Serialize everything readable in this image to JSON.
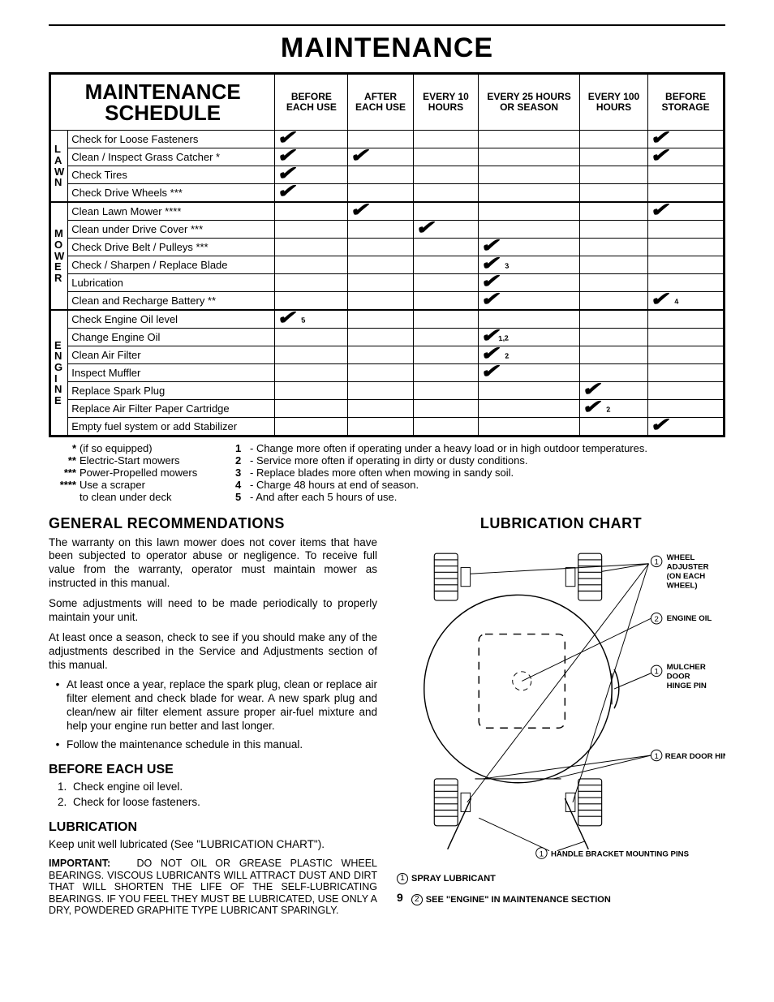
{
  "page_title": "MAINTENANCE",
  "schedule_title": "MAINTENANCE SCHEDULE",
  "columns": [
    "BEFORE EACH USE",
    "AFTER EACH USE",
    "EVERY 10 HOURS",
    "EVERY 25 HOURS OR SEASON",
    "EVERY 100 HOURS",
    "BEFORE STORAGE"
  ],
  "sections": [
    {
      "label": "LAWN",
      "split": [
        1,
        1,
        1,
        1
      ],
      "rows": [
        {
          "task": "Check for Loose Fasteners",
          "marks": [
            "✔",
            "",
            "",
            "",
            "",
            "✔"
          ],
          "subs": [
            "",
            "",
            "",
            "",
            "",
            ""
          ]
        },
        {
          "task": "Clean / Inspect Grass Catcher *",
          "marks": [
            "✔",
            "✔",
            "",
            "",
            "",
            "✔"
          ],
          "subs": [
            "",
            "",
            "",
            "",
            "",
            ""
          ]
        },
        {
          "task": "Check Tires",
          "marks": [
            "✔",
            "",
            "",
            "",
            "",
            ""
          ],
          "subs": [
            "",
            "",
            "",
            "",
            "",
            ""
          ]
        },
        {
          "task": "Check Drive Wheels ***",
          "marks": [
            "✔",
            "",
            "",
            "",
            "",
            ""
          ],
          "subs": [
            "",
            "",
            "",
            "",
            "",
            ""
          ]
        }
      ]
    },
    {
      "label": "MOWER",
      "split": [
        1,
        1,
        1,
        1,
        1
      ],
      "rows": [
        {
          "task": "Clean Lawn Mower ****",
          "marks": [
            "",
            "✔",
            "",
            "",
            "",
            "✔"
          ],
          "subs": [
            "",
            "",
            "",
            "",
            "",
            ""
          ]
        },
        {
          "task": "Clean under Drive Cover ***",
          "marks": [
            "",
            "",
            "✔",
            "",
            "",
            ""
          ],
          "subs": [
            "",
            "",
            "",
            "",
            "",
            ""
          ]
        },
        {
          "task": "Check Drive Belt / Pulleys ***",
          "marks": [
            "",
            "",
            "",
            "✔",
            "",
            ""
          ],
          "subs": [
            "",
            "",
            "",
            "",
            "",
            ""
          ]
        },
        {
          "task": "Check / Sharpen / Replace Blade",
          "marks": [
            "",
            "",
            "",
            "✔",
            "",
            ""
          ],
          "subs": [
            "",
            "",
            "",
            "3",
            "",
            ""
          ]
        },
        {
          "task": "Lubrication",
          "marks": [
            "",
            "",
            "",
            "✔",
            "",
            ""
          ],
          "subs": [
            "",
            "",
            "",
            "",
            "",
            ""
          ]
        }
      ]
    },
    {
      "label": "",
      "split": [],
      "rows": [
        {
          "task": "Clean and Recharge Battery **",
          "marks": [
            "",
            "",
            "",
            "✔",
            "",
            "✔"
          ],
          "subs": [
            "",
            "",
            "",
            "",
            "",
            "4"
          ]
        }
      ]
    },
    {
      "label": "ENGINE",
      "split": [
        1,
        1,
        1,
        1,
        1,
        1,
        1
      ],
      "rows": [
        {
          "task": "Check Engine Oil level",
          "marks": [
            "✔",
            "",
            "",
            "",
            "",
            ""
          ],
          "subs": [
            "5",
            "",
            "",
            "",
            "",
            ""
          ]
        },
        {
          "task": "Change Engine Oil",
          "marks": [
            "",
            "",
            "",
            "✔",
            "",
            ""
          ],
          "subs": [
            "",
            "",
            "",
            "1,2",
            "",
            ""
          ]
        },
        {
          "task": "Clean Air Filter",
          "marks": [
            "",
            "",
            "",
            "✔",
            "",
            ""
          ],
          "subs": [
            "",
            "",
            "",
            "2",
            "",
            ""
          ]
        },
        {
          "task": "Inspect Muffler",
          "marks": [
            "",
            "",
            "",
            "✔",
            "",
            ""
          ],
          "subs": [
            "",
            "",
            "",
            "",
            "",
            ""
          ]
        },
        {
          "task": "Replace Spark Plug",
          "marks": [
            "",
            "",
            "",
            "",
            "✔",
            ""
          ],
          "subs": [
            "",
            "",
            "",
            "",
            "",
            ""
          ]
        },
        {
          "task": "Replace Air Filter Paper Cartridge",
          "marks": [
            "",
            "",
            "",
            "",
            "✔",
            ""
          ],
          "subs": [
            "",
            "",
            "",
            "",
            "2",
            ""
          ]
        },
        {
          "task": "Empty fuel system or add Stabilizer",
          "marks": [
            "",
            "",
            "",
            "",
            "",
            "✔"
          ],
          "subs": [
            "",
            "",
            "",
            "",
            "",
            ""
          ]
        }
      ]
    }
  ],
  "footnotes_left": [
    {
      "ast": "*",
      "text": "(if so equipped)"
    },
    {
      "ast": "**",
      "text": "Electric-Start mowers"
    },
    {
      "ast": "***",
      "text": "Power-Propelled mowers"
    },
    {
      "ast": "****",
      "text": "Use a scraper"
    },
    {
      "ast": "",
      "text": "to clean under deck"
    }
  ],
  "footnotes_right": [
    {
      "num": "1",
      "text": "- Change more often if operating under a heavy load or in high outdoor temperatures."
    },
    {
      "num": "2",
      "text": "- Service more often if operating in dirty or dusty conditions."
    },
    {
      "num": "3",
      "text": "- Replace blades more often when mowing in sandy soil."
    },
    {
      "num": "4",
      "text": "- Charge 48 hours at end of season."
    },
    {
      "num": "5",
      "text": "- And after each 5 hours of use."
    }
  ],
  "gen_rec_title": "GENERAL RECOMMENDATIONS",
  "gen_rec_p1": "The warranty on this lawn mower does not cover items that have been subjected to operator abuse or negligence.  To receive full value from the warranty, operator must maintain mower as instructed in this manual.",
  "gen_rec_p2": "Some adjustments will need to be made periodically to properly maintain your unit.",
  "gen_rec_p3": "At least once a season, check to see if you should make any of the adjustments described in the Service and Adjustments section of this manual.",
  "gen_rec_b1": "At least once a year, replace the spark plug, clean or replace air filter element and check blade for wear.  A new spark plug and clean/new air filter element assure proper air-fuel mixture and help your engine run better and last longer.",
  "gen_rec_b2": "Follow the maintenance schedule in this manual.",
  "before_title": "BEFORE EACH USE",
  "before_1": "Check engine oil level.",
  "before_2": "Check for loose fasteners.",
  "lub_title": "LUBRICATION",
  "lub_p1": "Keep unit well lubricated (See \"LUBRICATION CHART\").",
  "lub_important": "DO NOT OIL OR GREASE PLASTIC WHEEL BEARINGS.  VISCOUS LUBRICANTS WILL ATTRACT DUST AND DIRT THAT WILL SHORTEN THE LIFE OF THE SELF-LUBRICATING BEARINGS.  IF YOU FEEL THEY MUST BE LUBRICATED, USE ONLY A DRY, POWDERED GRAPHITE TYPE LUBRICANT SPARINGLY.",
  "important_label": "IMPORTANT:",
  "lube_chart_title": "LUBRICATION CHART",
  "lube_callouts": {
    "wheel_adj": "WHEEL ADJUSTER (ON EACH WHEEL)",
    "engine_oil": "ENGINE OIL",
    "mulcher": "MULCHER DOOR HINGE PIN",
    "rear_door": "REAR DOOR HINGE",
    "handle": "HANDLE BRACKET MOUNTING PINS"
  },
  "lube_key1": "SPRAY LUBRICANT",
  "lube_key2": "SEE \"ENGINE\" IN MAINTENANCE SECTION",
  "page_number": "9",
  "colors": {
    "text": "#000000",
    "bg": "#ffffff"
  }
}
